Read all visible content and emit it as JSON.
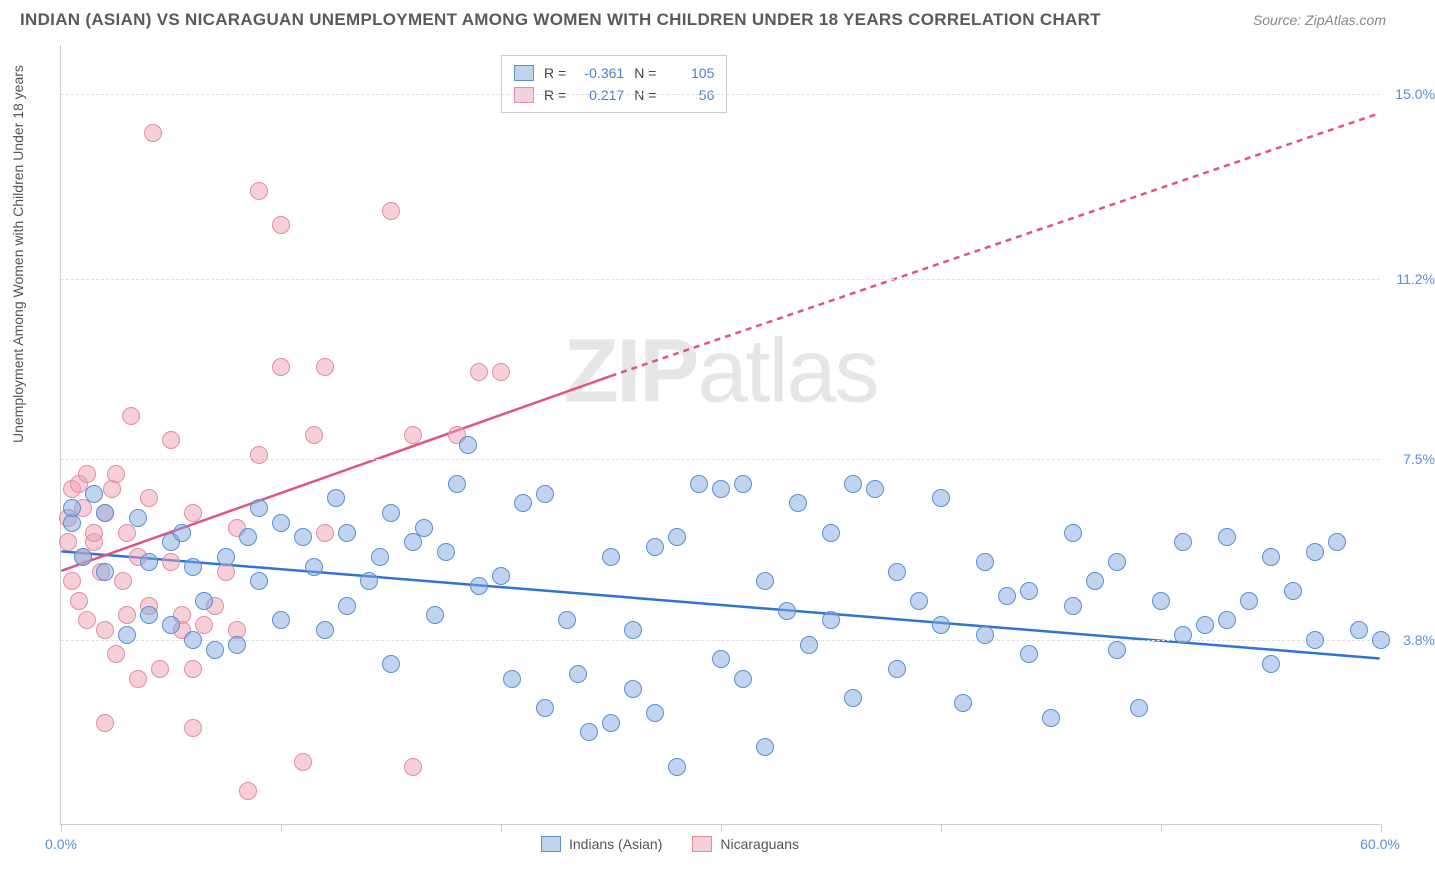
{
  "title": "INDIAN (ASIAN) VS NICARAGUAN UNEMPLOYMENT AMONG WOMEN WITH CHILDREN UNDER 18 YEARS CORRELATION CHART",
  "source": "Source: ZipAtlas.com",
  "y_axis_label": "Unemployment Among Women with Children Under 18 years",
  "watermark_a": "ZIP",
  "watermark_b": "atlas",
  "colors": {
    "series1_fill": "rgba(130,170,225,0.5)",
    "series1_stroke": "#5b8fd6",
    "series2_fill": "rgba(240,160,180,0.5)",
    "series2_stroke": "#e08fa5",
    "trend1": "#2f74d0",
    "trend2": "#e05580",
    "grid": "#e0e0e0",
    "axis": "#cccccc",
    "text": "#555555",
    "value_text": "#5b8fd6"
  },
  "x_axis": {
    "min": 0,
    "max": 60,
    "label_min": "0.0%",
    "label_max": "60.0%",
    "ticks_at": [
      0,
      10,
      20,
      30,
      40,
      50,
      60
    ]
  },
  "y_axis": {
    "min": 0,
    "max": 16,
    "gridlines": [
      {
        "v": 3.8,
        "label": "3.8%"
      },
      {
        "v": 7.5,
        "label": "7.5%"
      },
      {
        "v": 11.2,
        "label": "11.2%"
      },
      {
        "v": 15.0,
        "label": "15.0%"
      }
    ]
  },
  "stats": [
    {
      "series": 1,
      "r_label": "R =",
      "r": "-0.361",
      "n_label": "N =",
      "n": "105"
    },
    {
      "series": 2,
      "r_label": "R =",
      "r": "0.217",
      "n_label": "N =",
      "n": "56"
    }
  ],
  "legend": [
    {
      "series": 1,
      "label": "Indians (Asian)"
    },
    {
      "series": 2,
      "label": "Nicaraguans"
    }
  ],
  "trend_lines": {
    "series1": {
      "x1": 0,
      "y1": 5.6,
      "x2": 60,
      "y2": 3.4
    },
    "series2_solid": {
      "x1": 0,
      "y1": 5.2,
      "x2": 25,
      "y2": 9.2
    },
    "series2_dashed": {
      "x1": 25,
      "y1": 9.2,
      "x2": 60,
      "y2": 14.6
    }
  },
  "series1_points": [
    [
      0.5,
      6.2
    ],
    [
      0.5,
      6.5
    ],
    [
      1,
      5.5
    ],
    [
      1.5,
      6.8
    ],
    [
      2,
      5.2
    ],
    [
      2,
      6.4
    ],
    [
      3,
      3.9
    ],
    [
      3.5,
      6.3
    ],
    [
      4,
      5.4
    ],
    [
      4,
      4.3
    ],
    [
      5,
      4.1
    ],
    [
      5,
      5.8
    ],
    [
      5.5,
      6.0
    ],
    [
      6,
      3.8
    ],
    [
      6,
      5.3
    ],
    [
      6.5,
      4.6
    ],
    [
      7,
      3.6
    ],
    [
      7.5,
      5.5
    ],
    [
      8,
      3.7
    ],
    [
      8.5,
      5.9
    ],
    [
      9,
      6.5
    ],
    [
      9,
      5.0
    ],
    [
      10,
      4.2
    ],
    [
      10,
      6.2
    ],
    [
      11,
      5.9
    ],
    [
      11.5,
      5.3
    ],
    [
      12,
      4.0
    ],
    [
      12.5,
      6.7
    ],
    [
      13,
      4.5
    ],
    [
      13,
      6.0
    ],
    [
      14,
      5.0
    ],
    [
      14.5,
      5.5
    ],
    [
      15,
      3.3
    ],
    [
      15,
      6.4
    ],
    [
      16,
      5.8
    ],
    [
      16.5,
      6.1
    ],
    [
      17,
      4.3
    ],
    [
      17.5,
      5.6
    ],
    [
      18,
      7.0
    ],
    [
      18.5,
      7.8
    ],
    [
      19,
      4.9
    ],
    [
      20,
      5.1
    ],
    [
      20.5,
      3.0
    ],
    [
      21,
      6.6
    ],
    [
      22,
      2.4
    ],
    [
      22,
      6.8
    ],
    [
      23,
      4.2
    ],
    [
      23.5,
      3.1
    ],
    [
      24,
      1.9
    ],
    [
      25,
      2.1
    ],
    [
      25,
      5.5
    ],
    [
      26,
      2.8
    ],
    [
      26,
      4.0
    ],
    [
      27,
      5.7
    ],
    [
      27,
      2.3
    ],
    [
      28,
      5.9
    ],
    [
      28,
      1.2
    ],
    [
      29,
      7.0
    ],
    [
      30,
      3.4
    ],
    [
      30,
      6.9
    ],
    [
      31,
      3.0
    ],
    [
      31,
      7.0
    ],
    [
      32,
      1.6
    ],
    [
      32,
      5.0
    ],
    [
      33,
      4.4
    ],
    [
      33.5,
      6.6
    ],
    [
      34,
      3.7
    ],
    [
      35,
      4.2
    ],
    [
      35,
      6.0
    ],
    [
      36,
      7.0
    ],
    [
      36,
      2.6
    ],
    [
      37,
      6.9
    ],
    [
      38,
      3.2
    ],
    [
      38,
      5.2
    ],
    [
      39,
      4.6
    ],
    [
      40,
      4.1
    ],
    [
      40,
      6.7
    ],
    [
      41,
      2.5
    ],
    [
      42,
      3.9
    ],
    [
      42,
      5.4
    ],
    [
      43,
      4.7
    ],
    [
      44,
      3.5
    ],
    [
      44,
      4.8
    ],
    [
      45,
      2.2
    ],
    [
      46,
      6.0
    ],
    [
      46,
      4.5
    ],
    [
      47,
      5.0
    ],
    [
      48,
      3.6
    ],
    [
      48,
      5.4
    ],
    [
      49,
      2.4
    ],
    [
      50,
      4.6
    ],
    [
      51,
      5.8
    ],
    [
      51,
      3.9
    ],
    [
      52,
      4.1
    ],
    [
      53,
      4.2
    ],
    [
      53,
      5.9
    ],
    [
      54,
      4.6
    ],
    [
      55,
      5.5
    ],
    [
      55,
      3.3
    ],
    [
      56,
      4.8
    ],
    [
      57,
      3.8
    ],
    [
      57,
      5.6
    ],
    [
      58,
      5.8
    ],
    [
      59,
      4.0
    ],
    [
      60,
      3.8
    ]
  ],
  "series2_points": [
    [
      0.3,
      5.8
    ],
    [
      0.3,
      6.3
    ],
    [
      0.5,
      5.0
    ],
    [
      0.5,
      6.9
    ],
    [
      0.8,
      4.6
    ],
    [
      0.8,
      7.0
    ],
    [
      1,
      5.5
    ],
    [
      1,
      6.5
    ],
    [
      1.2,
      4.2
    ],
    [
      1.2,
      7.2
    ],
    [
      1.5,
      5.8
    ],
    [
      1.5,
      6.0
    ],
    [
      1.8,
      5.2
    ],
    [
      2,
      4.0
    ],
    [
      2,
      6.4
    ],
    [
      2,
      2.1
    ],
    [
      2.3,
      6.9
    ],
    [
      2.5,
      3.5
    ],
    [
      2.5,
      7.2
    ],
    [
      2.8,
      5.0
    ],
    [
      3,
      4.3
    ],
    [
      3,
      6.0
    ],
    [
      3.2,
      8.4
    ],
    [
      3.5,
      3.0
    ],
    [
      3.5,
      5.5
    ],
    [
      4,
      4.5
    ],
    [
      4,
      6.7
    ],
    [
      4.2,
      14.2
    ],
    [
      4.5,
      3.2
    ],
    [
      5,
      5.4
    ],
    [
      5,
      7.9
    ],
    [
      5.5,
      4.0
    ],
    [
      5.5,
      4.3
    ],
    [
      6,
      3.2
    ],
    [
      6,
      2.0
    ],
    [
      6,
      6.4
    ],
    [
      6.5,
      4.1
    ],
    [
      7,
      4.5
    ],
    [
      7.5,
      5.2
    ],
    [
      8,
      4.0
    ],
    [
      8,
      6.1
    ],
    [
      8.5,
      0.7
    ],
    [
      9,
      7.6
    ],
    [
      9,
      13.0
    ],
    [
      10,
      12.3
    ],
    [
      10,
      9.4
    ],
    [
      11,
      1.3
    ],
    [
      11.5,
      8.0
    ],
    [
      12,
      9.4
    ],
    [
      12,
      6.0
    ],
    [
      15,
      12.6
    ],
    [
      16,
      8.0
    ],
    [
      16,
      1.2
    ],
    [
      18,
      8.0
    ],
    [
      19,
      9.3
    ],
    [
      20,
      9.3
    ]
  ]
}
